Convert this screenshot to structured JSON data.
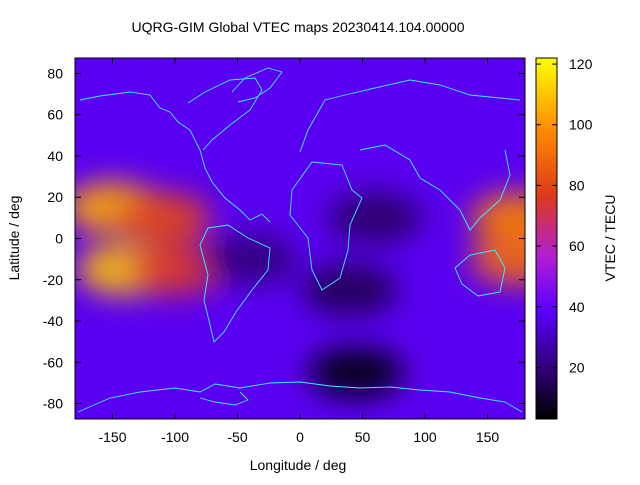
{
  "chart_data": {
    "type": "heatmap",
    "title": "UQRG-GIM Global VTEC maps 20230414.104.00000",
    "xlabel": "Longitude / deg",
    "ylabel": "Latitude / deg",
    "colorbar_label": "VTEC / TECU",
    "xlim": [
      -180,
      180
    ],
    "ylim": [
      -87.5,
      87.5
    ],
    "color_range": [
      3,
      122
    ],
    "x_ticks": [
      -150,
      -100,
      -50,
      0,
      50,
      100,
      150
    ],
    "y_ticks": [
      80,
      60,
      40,
      20,
      0,
      -20,
      -40,
      -60,
      -80
    ],
    "colorbar_ticks": [
      120,
      100,
      80,
      60,
      40,
      20
    ],
    "grid": false,
    "overlay": "coastlines",
    "colormap": [
      "#000000",
      "#2a0066",
      "#5a00ff",
      "#b21ed2",
      "#dd3a1a",
      "#ff8a00",
      "#ffff00"
    ],
    "features": [
      {
        "lon": -150,
        "lat": 15,
        "value": 105
      },
      {
        "lon": -140,
        "lat": -15,
        "value": 110
      },
      {
        "lon": -110,
        "lat": 10,
        "value": 80
      },
      {
        "lon": -100,
        "lat": -15,
        "value": 75
      },
      {
        "lon": 175,
        "lat": 10,
        "value": 95
      },
      {
        "lon": 175,
        "lat": -10,
        "value": 90
      },
      {
        "lon": 45,
        "lat": -65,
        "value": 5
      },
      {
        "lon": 40,
        "lat": -25,
        "value": 14
      },
      {
        "lon": 60,
        "lat": 10,
        "value": 17
      },
      {
        "lon": -40,
        "lat": -10,
        "value": 20
      }
    ]
  }
}
